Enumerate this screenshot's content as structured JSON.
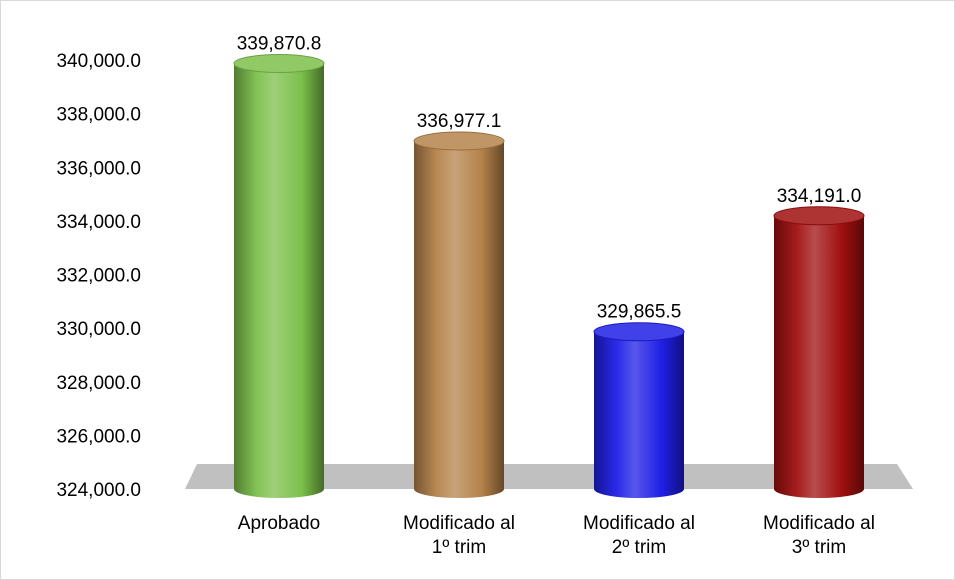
{
  "chart_data": {
    "type": "bar",
    "title": "",
    "xlabel": "",
    "ylabel": "",
    "ylim": [
      324000,
      340000
    ],
    "y_ticks": [
      324000,
      326000,
      328000,
      330000,
      332000,
      334000,
      336000,
      338000,
      340000
    ],
    "y_tick_labels": [
      "324,000.0",
      "326,000.0",
      "328,000.0",
      "330,000.0",
      "332,000.0",
      "334,000.0",
      "336,000.0",
      "338,000.0",
      "340,000.0"
    ],
    "grid": false,
    "legend": "none",
    "categories": [
      [
        "Aprobado"
      ],
      [
        "Modificado al",
        "1º trim"
      ],
      [
        "Modificado al",
        "2º trim"
      ],
      [
        "Modificado al",
        "3º trim"
      ]
    ],
    "values": [
      339870.8,
      336977.1,
      329865.5,
      334191.0
    ],
    "data_labels": [
      "339,870.8",
      "336,977.1",
      "329,865.5",
      "334,191.0"
    ],
    "colors": [
      "#7cc04b",
      "#b5834b",
      "#1f1fe6",
      "#a01010"
    ]
  }
}
